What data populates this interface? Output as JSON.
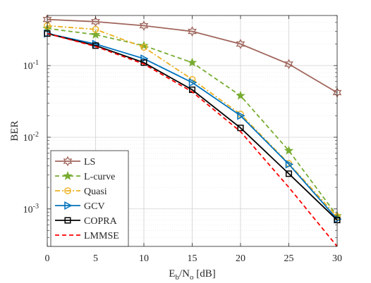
{
  "chart_data": {
    "type": "line",
    "xlabel": {
      "base1": "E",
      "sub1": "b",
      "mid": "/N",
      "sub2": "o",
      "tail": " [dB]"
    },
    "ylabel": "BER",
    "x": [
      0,
      5,
      10,
      15,
      20,
      25,
      30
    ],
    "xlim": [
      0,
      30
    ],
    "ylim": [
      0.0003,
      0.5
    ],
    "yscale": "log",
    "x_ticks": [
      0,
      5,
      10,
      15,
      20,
      25,
      30
    ],
    "y_ticks": [
      {
        "value": 0.1,
        "base": "10",
        "exp": "-1"
      },
      {
        "value": 0.01,
        "base": "10",
        "exp": "-2"
      },
      {
        "value": 0.001,
        "base": "10",
        "exp": "-3"
      }
    ],
    "grid": true,
    "minor_grid": true,
    "legend_position": "bottom-left",
    "series": [
      {
        "name": "LS",
        "color": "#a0665c",
        "dash": "solid",
        "marker": "hexagram",
        "values": [
          0.44,
          0.41,
          0.36,
          0.3,
          0.2,
          0.105,
          0.042
        ]
      },
      {
        "name": "L-curve",
        "color": "#77ac30",
        "dash": "dashed",
        "marker": "star",
        "values": [
          0.33,
          0.27,
          0.19,
          0.11,
          0.038,
          0.0065,
          0.0008
        ]
      },
      {
        "name": "Quasi",
        "color": "#edb120",
        "dash": "dashdot",
        "marker": "circle",
        "values": [
          0.36,
          0.32,
          0.18,
          0.064,
          0.021,
          0.0043,
          0.00078
        ]
      },
      {
        "name": "GCV",
        "color": "#0072bd",
        "dash": "solid",
        "marker": "triangle-right",
        "values": [
          0.28,
          0.2,
          0.125,
          0.058,
          0.02,
          0.0042,
          0.00072
        ]
      },
      {
        "name": "COPRA",
        "color": "#000000",
        "dash": "solid",
        "marker": "square",
        "values": [
          0.28,
          0.19,
          0.11,
          0.046,
          0.0135,
          0.0031,
          0.0007
        ]
      },
      {
        "name": "LMMSE",
        "color": "#ff0000",
        "dash": "dashed",
        "marker": "none",
        "values": [
          0.28,
          0.185,
          0.105,
          0.043,
          0.012,
          0.002,
          0.0003
        ]
      }
    ]
  }
}
